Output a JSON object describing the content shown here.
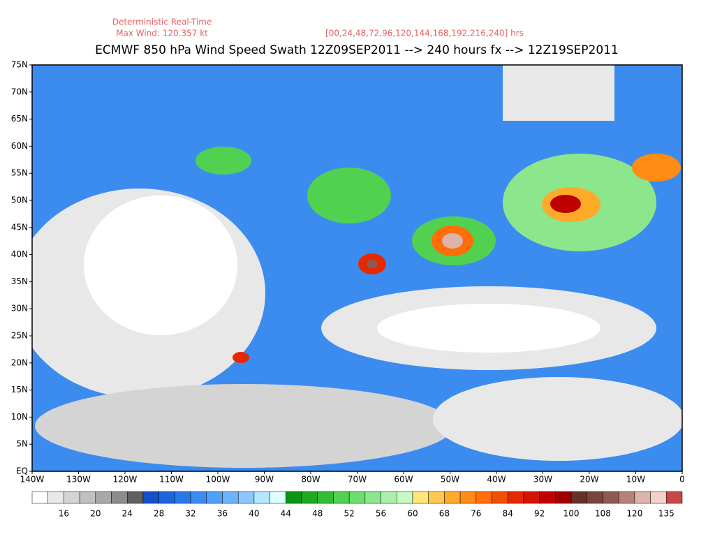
{
  "header": {
    "line1": "Deterministic Real-Time",
    "line2": "Max Wind: 120.357 kt",
    "hours": "[00,24,48,72,96,120,144,168,192,216,240] hrs",
    "title": "ECMWF 850 hPa Wind Speed Swath 12Z09SEP2011 --> 240 hours fx --> 12Z19SEP2011"
  },
  "map": {
    "lat_labels": [
      "EQ",
      "5N",
      "10N",
      "15N",
      "20N",
      "25N",
      "30N",
      "35N",
      "40N",
      "45N",
      "50N",
      "55N",
      "60N",
      "65N",
      "70N",
      "75N"
    ],
    "lon_labels": [
      "140W",
      "130W",
      "120W",
      "110W",
      "100W",
      "90W",
      "80W",
      "70W",
      "60W",
      "50W",
      "40W",
      "30W",
      "20W",
      "10W",
      "0"
    ]
  },
  "colorbar": {
    "colors": [
      "#ffffff",
      "#e8e8e8",
      "#d4d4d4",
      "#c0c0c0",
      "#a8a8a8",
      "#8c8c8c",
      "#606060",
      "#1450c8",
      "#1e64dc",
      "#2878e6",
      "#3c8cf0",
      "#50a0f5",
      "#6eb4fa",
      "#8cc8ff",
      "#b4e6ff",
      "#e0ffff",
      "#0a9614",
      "#1eaa1e",
      "#32be32",
      "#50d250",
      "#6edc6e",
      "#8ce68c",
      "#aaf0aa",
      "#c8fac8",
      "#ffe678",
      "#ffc850",
      "#ffaa28",
      "#ff8c14",
      "#ff6e0a",
      "#f05000",
      "#e62800",
      "#d21400",
      "#be0000",
      "#a00000",
      "#643228",
      "#78463c",
      "#8c5a50",
      "#b4827a",
      "#dcb4aa",
      "#f0d2c8",
      "#c84646"
    ],
    "labels": [
      "16",
      "20",
      "24",
      "28",
      "32",
      "36",
      "40",
      "44",
      "48",
      "52",
      "56",
      "60",
      "68",
      "76",
      "84",
      "92",
      "100",
      "108",
      "120",
      "135"
    ]
  }
}
